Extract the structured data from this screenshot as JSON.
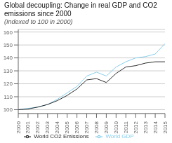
{
  "chart_data": {
    "type": "line",
    "title": "Global decoupling: Change in real GDP and CO2 emissions since 2000",
    "subtitle": "(Indexed to 100 in 2000)",
    "x": [
      2000,
      2001,
      2002,
      2003,
      2004,
      2005,
      2006,
      2007,
      2008,
      2009,
      2010,
      2011,
      2012,
      2013,
      2014,
      2015
    ],
    "series": [
      {
        "name": "World GDP",
        "color": "#87ceeb",
        "values": [
          100,
          101,
          102,
          104,
          108,
          113,
          118,
          126,
          129,
          126,
          133,
          137,
          140,
          141,
          143,
          151
        ]
      },
      {
        "name": "World CO2 Emissions",
        "color": "#2a2a2a",
        "values": [
          100,
          100.5,
          102,
          104,
          107,
          111,
          116,
          123,
          124,
          121,
          128,
          133,
          134,
          136,
          137,
          137
        ]
      }
    ],
    "xlim": [
      2000,
      2015
    ],
    "xticks": [
      2000,
      2001,
      2002,
      2003,
      2004,
      2005,
      2006,
      2007,
      2008,
      2009,
      2010,
      2011,
      2012,
      2013,
      2014,
      2015
    ],
    "ylim": [
      97,
      162
    ],
    "yticks": [
      100,
      110,
      120,
      130,
      140,
      150,
      160
    ],
    "grid": "y",
    "legend": "bottom"
  }
}
